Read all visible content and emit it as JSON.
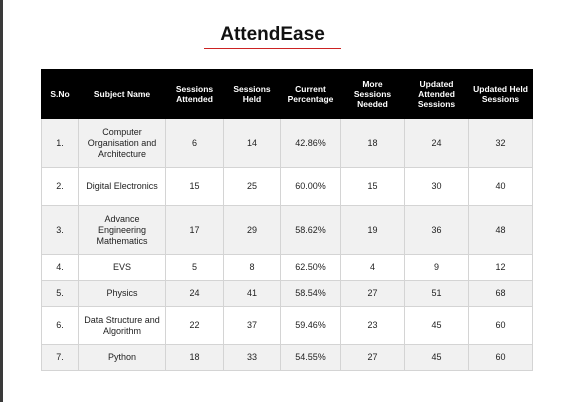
{
  "title": "AttendEase",
  "colors": {
    "header_bg": "#000000",
    "header_text": "#ffffff",
    "title_underline": "#cc2222",
    "row_alt": "#f1f1f1"
  },
  "table": {
    "headers": [
      "S.No",
      "Subject Name",
      "Sessions Attended",
      "Sessions Held",
      "Current Percentage",
      "More Sessions Needed",
      "Updated Attended Sessions",
      "Updated Held Sessions"
    ],
    "rows": [
      [
        "1.",
        "Computer Organisation and Architecture",
        "6",
        "14",
        "42.86%",
        "18",
        "24",
        "32"
      ],
      [
        "2.",
        "Digital Electronics",
        "15",
        "25",
        "60.00%",
        "15",
        "30",
        "40"
      ],
      [
        "3.",
        "Advance Engineering Mathematics",
        "17",
        "29",
        "58.62%",
        "19",
        "36",
        "48"
      ],
      [
        "4.",
        "EVS",
        "5",
        "8",
        "62.50%",
        "4",
        "9",
        "12"
      ],
      [
        "5.",
        "Physics",
        "24",
        "41",
        "58.54%",
        "27",
        "51",
        "68"
      ],
      [
        "6.",
        "Data Structure and Algorithm",
        "22",
        "37",
        "59.46%",
        "23",
        "45",
        "60"
      ],
      [
        "7.",
        "Python",
        "18",
        "33",
        "54.55%",
        "27",
        "45",
        "60"
      ]
    ]
  }
}
